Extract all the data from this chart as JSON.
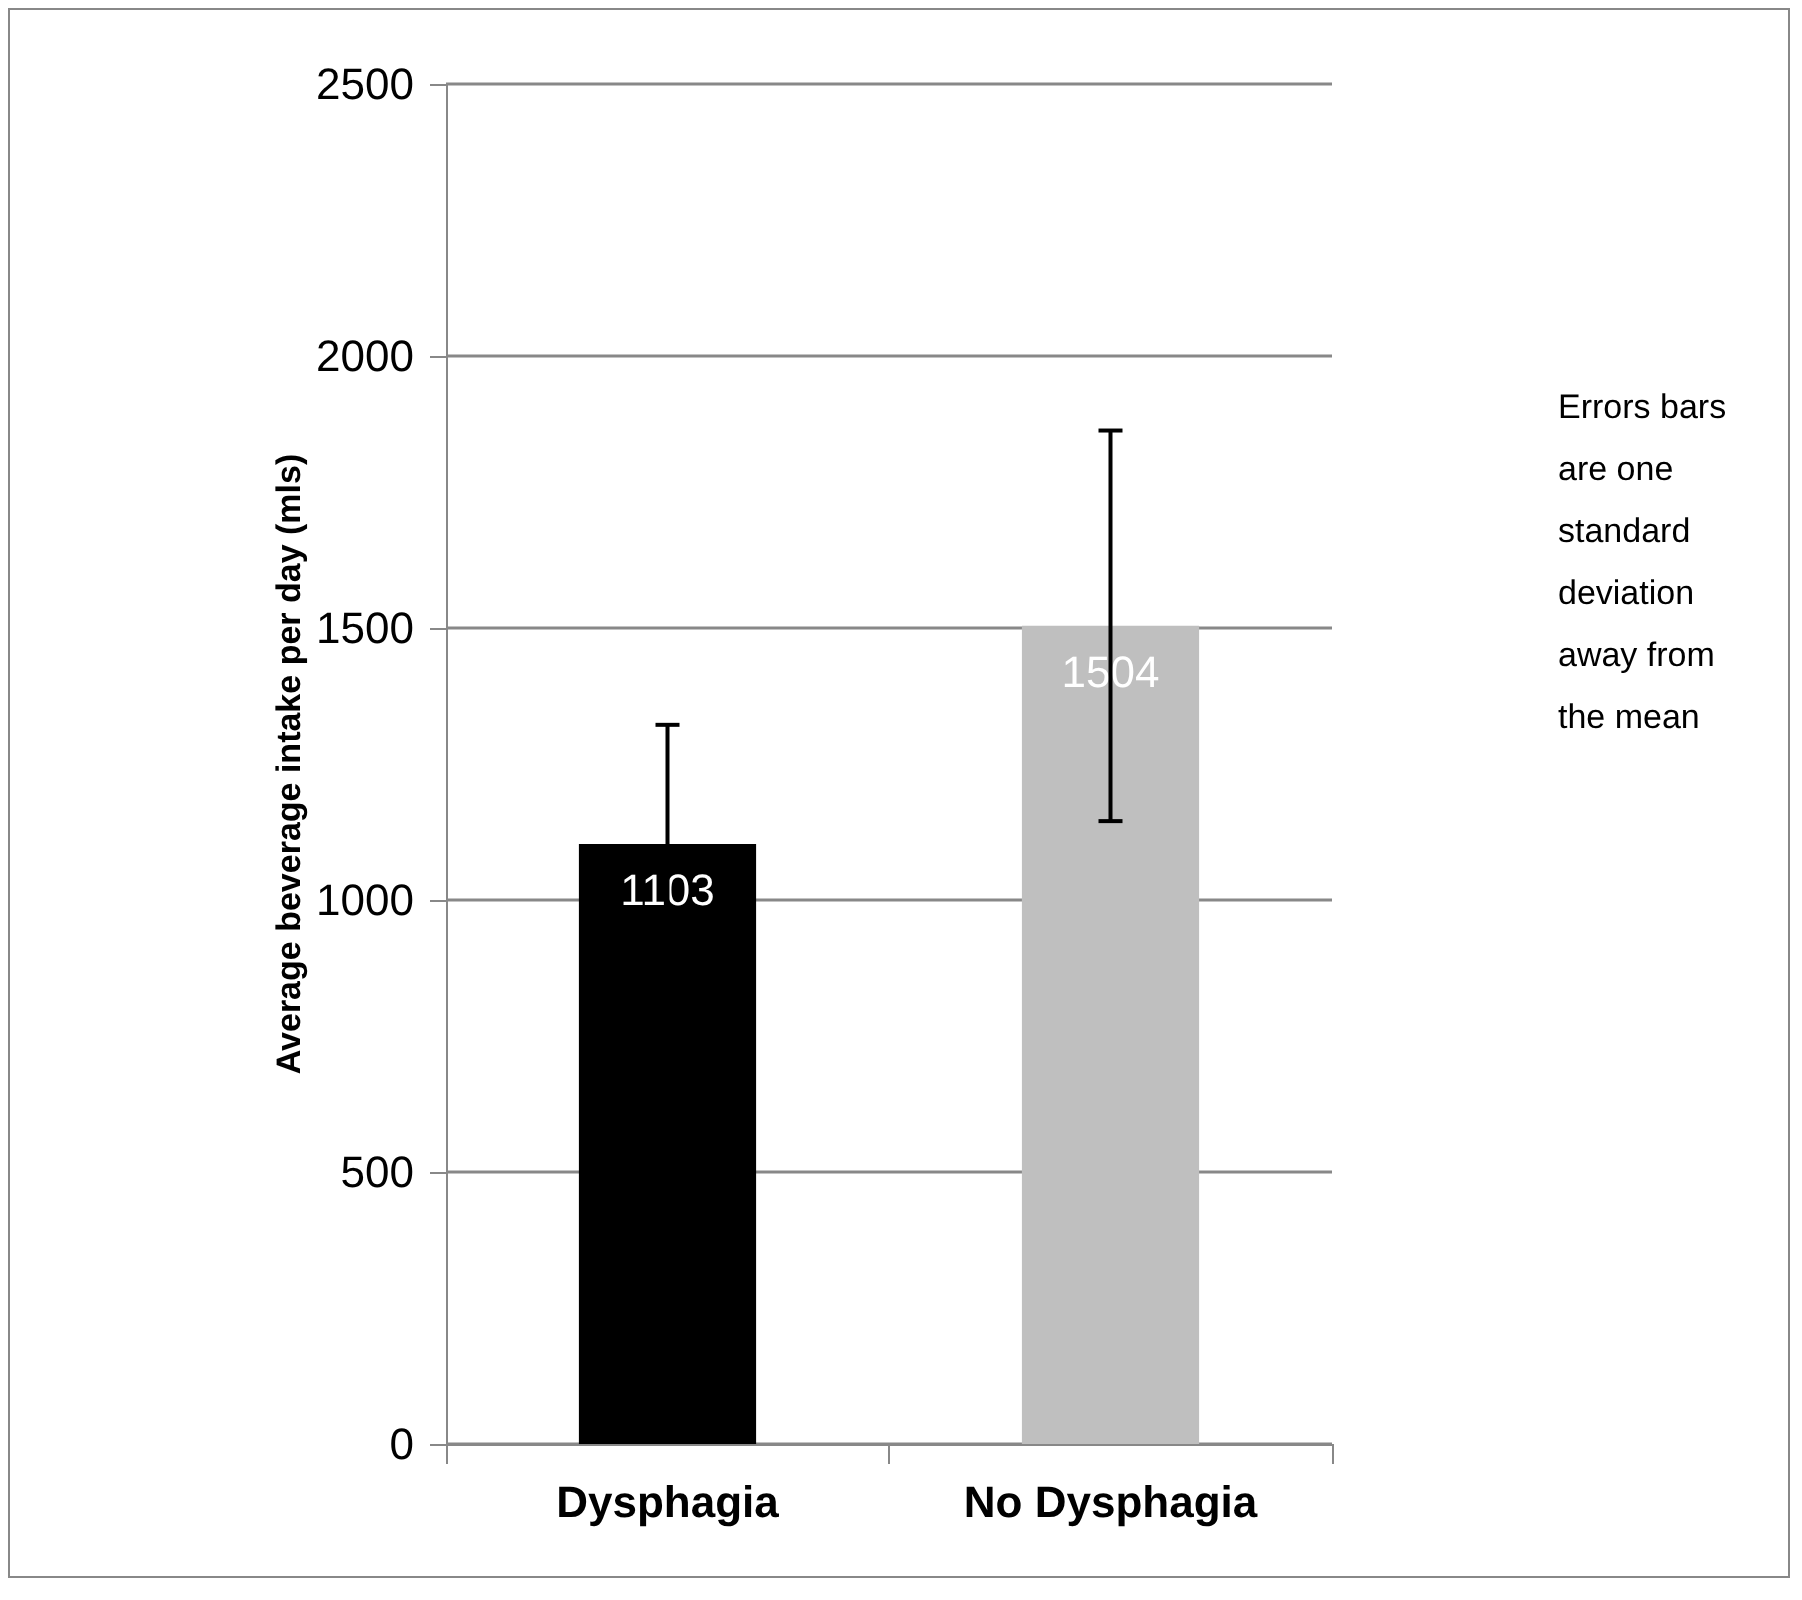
{
  "chart_data": {
    "type": "bar",
    "ylabel": "Average beverage intake per day (mls)",
    "categories": [
      "Dysphagia",
      "No Dysphagia"
    ],
    "values": [
      1103,
      1504
    ],
    "colors": [
      "#000000",
      "#bfbfbf"
    ],
    "errors": [
      219,
      359
    ],
    "ylim": [
      0,
      2500
    ],
    "yticks": [
      0,
      500,
      1000,
      1500,
      2000,
      2500
    ],
    "grid": "y",
    "data_labels": true,
    "annotations": [
      "Errors bars are one standard deviation away from the mean"
    ]
  }
}
